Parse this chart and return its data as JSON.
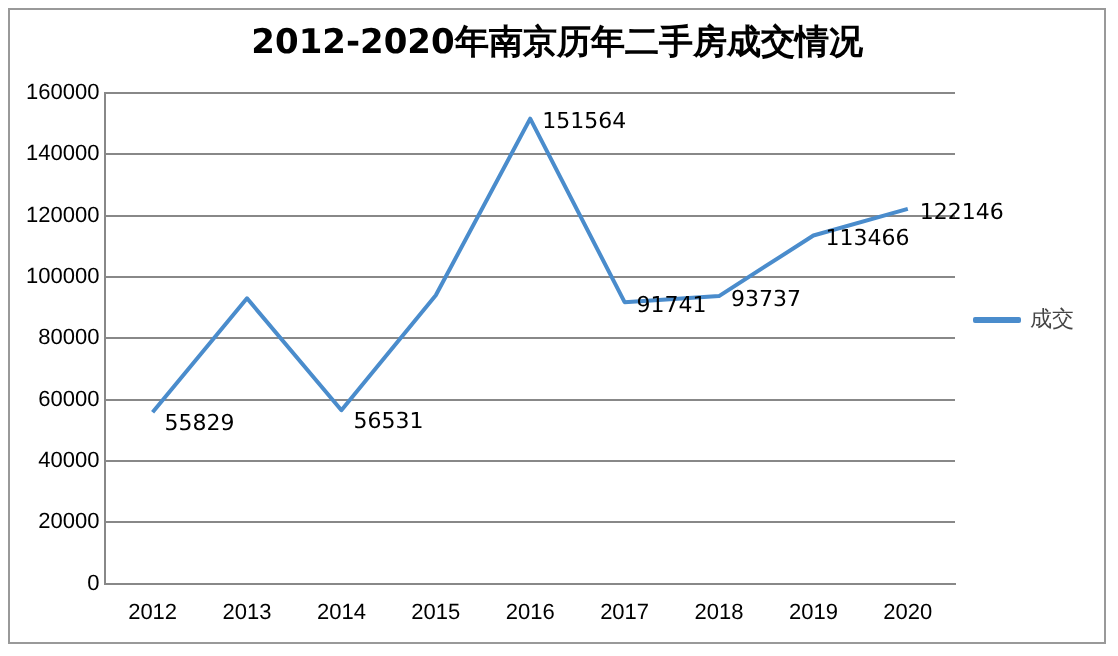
{
  "chart_data": {
    "type": "line",
    "title": "2012-2020年南京历年二手房成交情况",
    "categories": [
      "2012",
      "2013",
      "2014",
      "2015",
      "2016",
      "2017",
      "2018",
      "2019",
      "2020"
    ],
    "series": [
      {
        "name": "成交",
        "color": "#4a8ccc",
        "values": [
          55829,
          93000,
          56531,
          94000,
          151564,
          91741,
          93737,
          113466,
          122146
        ],
        "value_labels": [
          "55829",
          null,
          "56531",
          null,
          "151564",
          "91741",
          "93737",
          "113466",
          "122146"
        ]
      }
    ],
    "ylim": [
      0,
      160000
    ],
    "yticks": [
      0,
      20000,
      40000,
      60000,
      80000,
      100000,
      120000,
      140000,
      160000
    ],
    "grid": "y",
    "legend": "right",
    "marker": "none"
  }
}
